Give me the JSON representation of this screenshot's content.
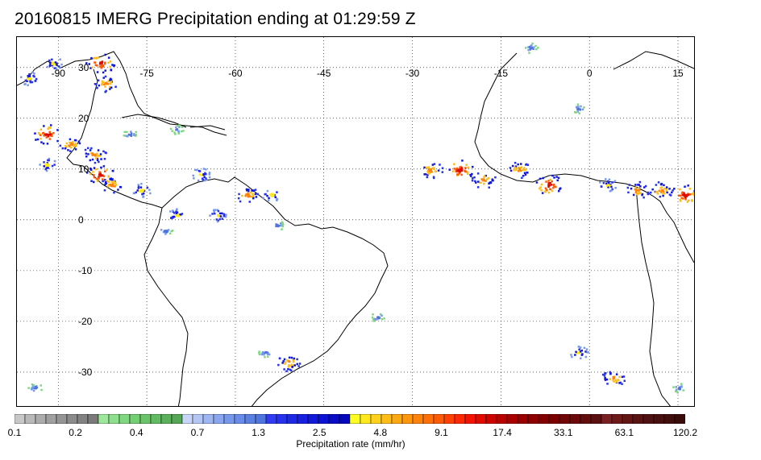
{
  "title": "20160815 IMERG Precipitation ending at 01:29:59 Z",
  "map": {
    "lon_range": [
      -97,
      18
    ],
    "lat_range": [
      -37,
      36
    ],
    "lon_ticks": [
      "-90",
      "-75",
      "-60",
      "-45",
      "-30",
      "-15",
      "0",
      "15"
    ],
    "lat_ticks": [
      "30",
      "20",
      "10",
      "0",
      "-10",
      "-20",
      "-30"
    ],
    "grid": "dotted",
    "coastline_color": "#000000"
  },
  "colorbar": {
    "title": "Precipitation rate (mm/hr)",
    "labels": [
      "0.1",
      "0.2",
      "0.4",
      "0.7",
      "1.3",
      "2.5",
      "4.8",
      "9.1",
      "17.4",
      "33.1",
      "63.1",
      "120.2"
    ],
    "colors": [
      "#c8c8c8",
      "#b9b9b9",
      "#acacac",
      "#a0a0a0",
      "#959595",
      "#8b8b8b",
      "#828282",
      "#7a7a7a",
      "#9ee89e",
      "#8ee08e",
      "#7fd77f",
      "#74ce74",
      "#6ac46a",
      "#62ba62",
      "#5bb05b",
      "#55a655",
      "#c8d6f8",
      "#b3c6f6",
      "#9eb6f3",
      "#8aa6f0",
      "#7799ec",
      "#688ce7",
      "#5a80e2",
      "#4e74dd",
      "#2f3cf2",
      "#2632ec",
      "#1e29e6",
      "#1720df",
      "#1119d8",
      "#0c12d0",
      "#080cc7",
      "#0507bd",
      "#ffff22",
      "#ffe81e",
      "#ffd11a",
      "#ffbd16",
      "#ffa912",
      "#ff960e",
      "#ff830b",
      "#ff7008",
      "#ff5a05",
      "#ff4203",
      "#ff2801",
      "#f21400",
      "#e00a00",
      "#cc0400",
      "#bb0000",
      "#a80000",
      "#980000",
      "#8e0000",
      "#840000",
      "#7a0000",
      "#720606",
      "#6a0a0a",
      "#620e0e",
      "#5a1010",
      "#7a2020",
      "#6e1a1a",
      "#641616",
      "#5a1313",
      "#521111",
      "#4a0f0f",
      "#420d0d",
      "#3a0b0b"
    ]
  },
  "rain_cells": [
    {
      "lon": -91,
      "lat": 31,
      "level": 2
    },
    {
      "lon": -83,
      "lat": 31,
      "level": 4
    },
    {
      "lon": -82,
      "lat": 27,
      "level": 3
    },
    {
      "lon": -95,
      "lat": 28,
      "level": 2
    },
    {
      "lon": -92,
      "lat": 17,
      "level": 4
    },
    {
      "lon": -88,
      "lat": 15,
      "level": 3
    },
    {
      "lon": -84,
      "lat": 13,
      "level": 3
    },
    {
      "lon": -92,
      "lat": 11,
      "level": 2
    },
    {
      "lon": -83,
      "lat": 9,
      "level": 4
    },
    {
      "lon": -81,
      "lat": 7,
      "level": 3
    },
    {
      "lon": -76,
      "lat": 6,
      "level": 2
    },
    {
      "lon": -78,
      "lat": 17,
      "level": 1
    },
    {
      "lon": -70,
      "lat": 18,
      "level": 1
    },
    {
      "lon": -66,
      "lat": 9,
      "level": 2
    },
    {
      "lon": -58,
      "lat": 5,
      "level": 3
    },
    {
      "lon": -54,
      "lat": 5,
      "level": 2
    },
    {
      "lon": -70,
      "lat": 1,
      "level": 2
    },
    {
      "lon": -63,
      "lat": 1,
      "level": 2
    },
    {
      "lon": -72,
      "lat": -2,
      "level": 1
    },
    {
      "lon": -53,
      "lat": -1,
      "level": 1
    },
    {
      "lon": -27,
      "lat": 10,
      "level": 3
    },
    {
      "lon": -22,
      "lat": 10,
      "level": 4
    },
    {
      "lon": -18,
      "lat": 8,
      "level": 3
    },
    {
      "lon": -12,
      "lat": 10,
      "level": 3
    },
    {
      "lon": -7,
      "lat": 7,
      "level": 4
    },
    {
      "lon": 3,
      "lat": 7,
      "level": 2
    },
    {
      "lon": 8,
      "lat": 6,
      "level": 3
    },
    {
      "lon": 12,
      "lat": 6,
      "level": 3
    },
    {
      "lon": 16,
      "lat": 5,
      "level": 4
    },
    {
      "lon": -2,
      "lat": 22,
      "level": 1
    },
    {
      "lon": -10,
      "lat": 34,
      "level": 1
    },
    {
      "lon": -2,
      "lat": -26,
      "level": 2
    },
    {
      "lon": 4,
      "lat": -31,
      "level": 3
    },
    {
      "lon": -51,
      "lat": -28,
      "level": 3
    },
    {
      "lon": -55,
      "lat": -26,
      "level": 1
    },
    {
      "lon": -94,
      "lat": -33,
      "level": 1
    },
    {
      "lon": -36,
      "lat": -19,
      "level": 1
    },
    {
      "lon": 15,
      "lat": -33,
      "level": 1
    }
  ]
}
